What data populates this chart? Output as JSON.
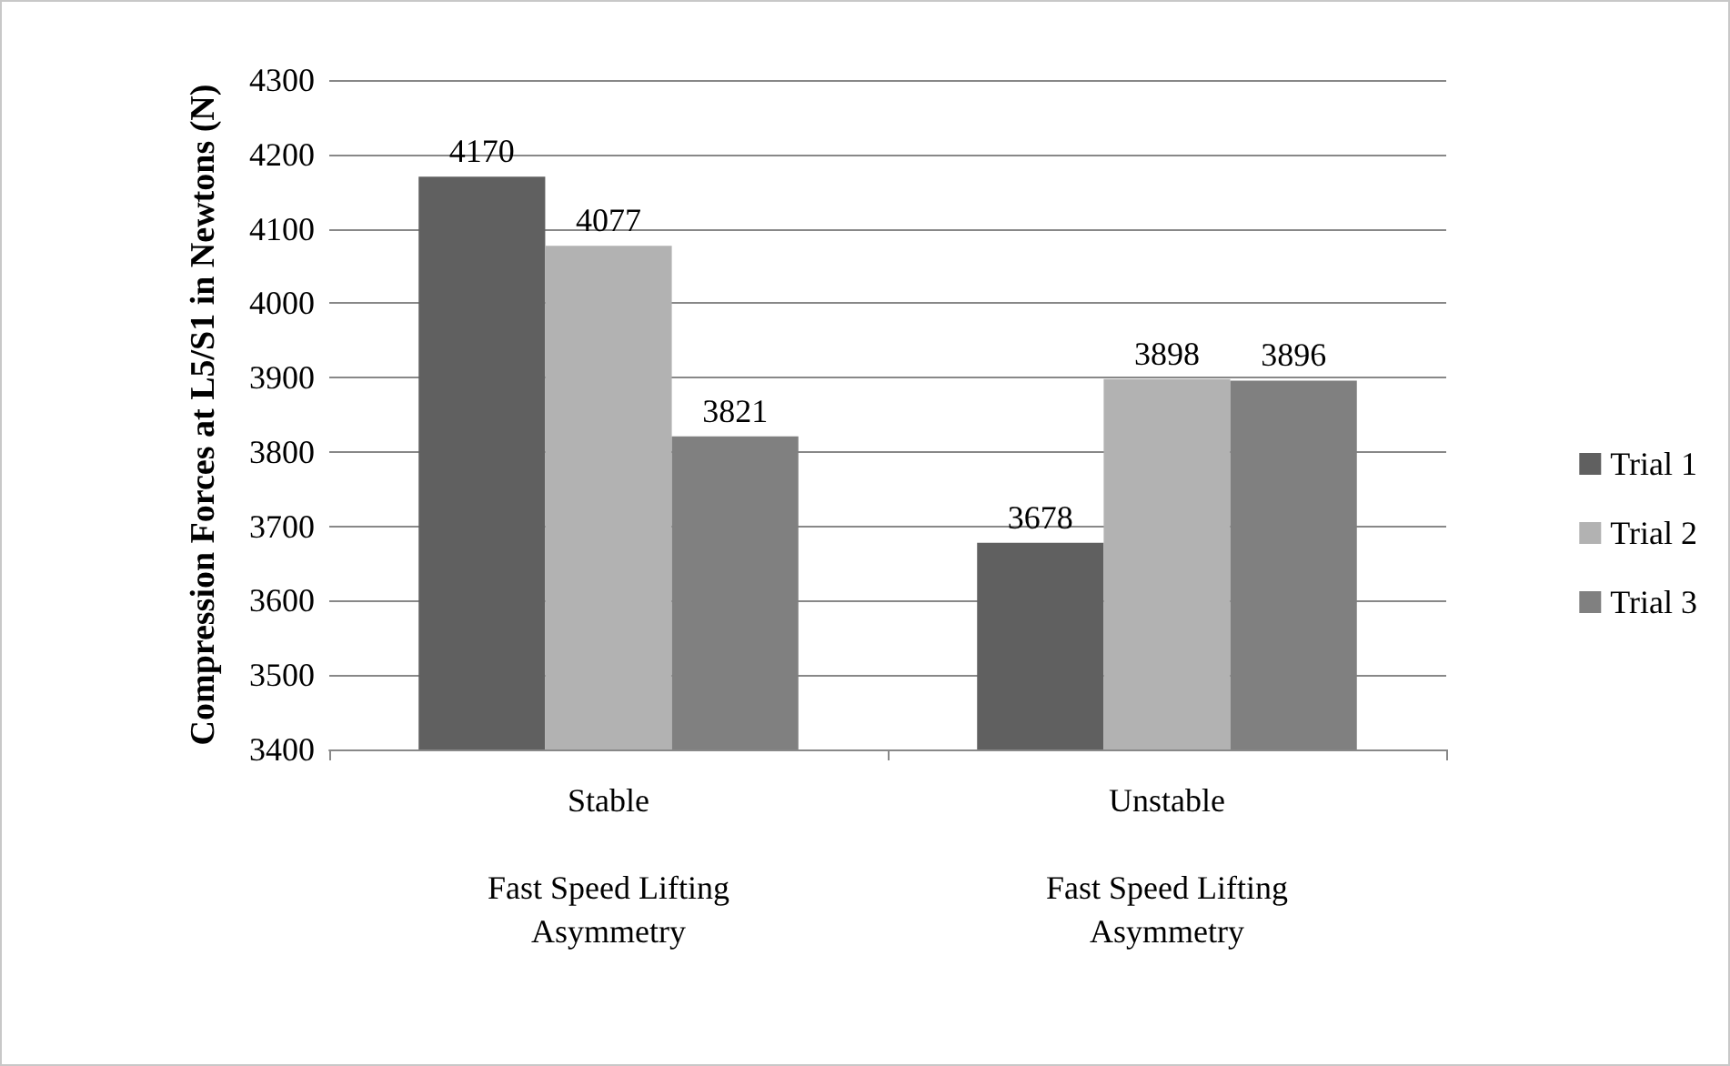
{
  "chart_data": {
    "type": "bar",
    "ylabel": "Compression Forces at L5/S1 in Newtons (N)",
    "categories": [
      "Stable\n\nFast Speed Lifting\nAsymmetry",
      "Unstable\n\nFast Speed Lifting\nAsymmetry"
    ],
    "series": [
      {
        "name": "Trial 1",
        "color": "#606060",
        "values": [
          4170,
          3678
        ]
      },
      {
        "name": "Trial 2",
        "color": "#b2b2b2",
        "values": [
          4077,
          3898
        ]
      },
      {
        "name": "Trial 3",
        "color": "#808080",
        "values": [
          3821,
          3896
        ]
      }
    ],
    "ylim": [
      3400,
      4300
    ],
    "yticks": [
      3400,
      3500,
      3600,
      3700,
      3800,
      3900,
      4000,
      4100,
      4200,
      4300
    ],
    "grid": "y",
    "legend": "right",
    "data_labels": true
  }
}
